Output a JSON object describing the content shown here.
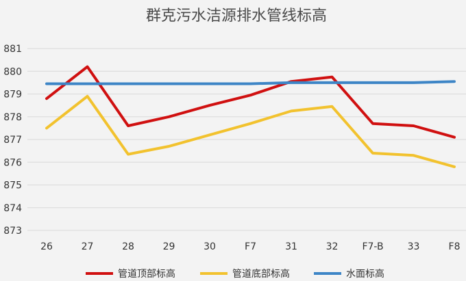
{
  "chart_data": {
    "type": "line",
    "title": "群克污水洁源排水管线标高",
    "categories": [
      "26",
      "27",
      "28",
      "29",
      "30",
      "F7",
      "31",
      "32",
      "F7-B",
      "33",
      "F8"
    ],
    "y_ticks": [
      "881",
      "880",
      "879",
      "878",
      "877",
      "876",
      "875",
      "874",
      "873"
    ],
    "ylim": [
      873,
      881
    ],
    "grid": true,
    "legend_position": "bottom",
    "series": [
      {
        "name": "管道顶部标高",
        "color": "#d01010",
        "values": [
          878.8,
          880.2,
          877.6,
          878.0,
          878.5,
          878.95,
          879.55,
          879.75,
          877.7,
          877.6,
          877.1
        ]
      },
      {
        "name": "管道底部标高",
        "color": "#f2c22e",
        "values": [
          877.5,
          878.9,
          876.35,
          876.7,
          877.2,
          877.7,
          878.25,
          878.45,
          876.4,
          876.3,
          875.8
        ]
      },
      {
        "name": "水面标高",
        "color": "#3d85c6",
        "values": [
          879.45,
          879.45,
          879.45,
          879.45,
          879.45,
          879.45,
          879.5,
          879.5,
          879.5,
          879.5,
          879.55
        ]
      }
    ]
  }
}
